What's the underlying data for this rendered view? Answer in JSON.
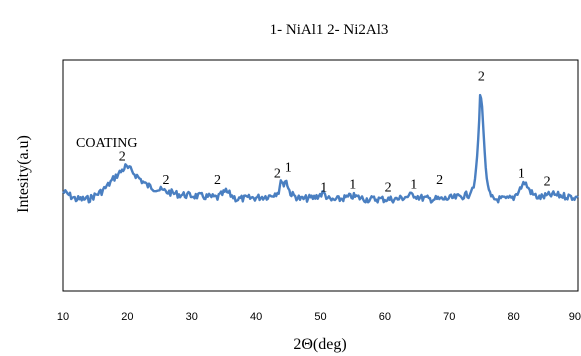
{
  "chart_data": {
    "type": "line",
    "title": "1- NiAl1   2- Ni2Al3",
    "annotation": "COATING",
    "xlabel": "2Θ(deg)",
    "ylabel": "Intesity(a.u)",
    "xlim": [
      10,
      90
    ],
    "ylim": [
      0,
      100
    ],
    "yticks_shown": false,
    "grid": false,
    "x_ticks": [
      "10",
      "20",
      "30",
      "40",
      "50",
      "60",
      "70",
      "80",
      "90"
    ],
    "line_color": "#4a7fc1",
    "series": [
      {
        "x": [
          10,
          12,
          14,
          16,
          17,
          18,
          19,
          19.7,
          20.5,
          21.5,
          23,
          25,
          28,
          31,
          34,
          35.3,
          37,
          40,
          42,
          43.5,
          44,
          44.3,
          44.7,
          45,
          45.5,
          47,
          49,
          50.5,
          51.5,
          53,
          55,
          57,
          60,
          62,
          64.5,
          65.5,
          67,
          69,
          71,
          73,
          74,
          74.5,
          74.8,
          75.1,
          75.5,
          76,
          76.5,
          77,
          78,
          79,
          80,
          81,
          81.7,
          82.3,
          83,
          84,
          86,
          88,
          90
        ],
        "y": [
          38,
          33,
          33,
          38,
          42,
          47,
          51,
          54,
          52,
          48,
          42,
          39,
          36,
          35,
          34,
          38,
          33,
          34,
          35,
          38,
          46,
          42,
          46,
          40,
          36,
          33,
          34,
          37,
          32,
          33,
          35,
          33,
          33,
          33,
          36,
          34,
          33,
          33,
          34,
          36,
          44,
          70,
          100,
          95,
          62,
          40,
          34,
          33,
          33,
          33,
          34,
          40,
          44,
          40,
          36,
          34,
          36,
          35,
          34
        ]
      }
    ],
    "peak_labels": [
      {
        "x": 19.2,
        "y": 58,
        "text": "2"
      },
      {
        "x": 26,
        "y": 43,
        "text": "2"
      },
      {
        "x": 34,
        "y": 43,
        "text": "2"
      },
      {
        "x": 43.3,
        "y": 47,
        "text": "2"
      },
      {
        "x": 45,
        "y": 51,
        "text": "1"
      },
      {
        "x": 50.5,
        "y": 38,
        "text": "1"
      },
      {
        "x": 55,
        "y": 40,
        "text": "1"
      },
      {
        "x": 60.5,
        "y": 38,
        "text": "2"
      },
      {
        "x": 64.5,
        "y": 40,
        "text": "1"
      },
      {
        "x": 68.5,
        "y": 43,
        "text": "2"
      },
      {
        "x": 75,
        "y": 110,
        "text": "2"
      },
      {
        "x": 81.2,
        "y": 47,
        "text": "1"
      },
      {
        "x": 85.2,
        "y": 42,
        "text": "2"
      }
    ]
  }
}
